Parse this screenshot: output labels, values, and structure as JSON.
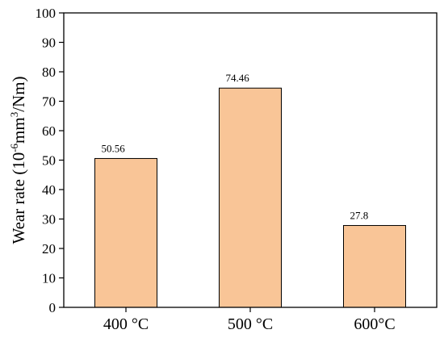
{
  "chart_data": {
    "type": "bar",
    "categories": [
      "400 °C",
      "500 °C",
      "600°C"
    ],
    "values": [
      50.56,
      74.46,
      27.8
    ],
    "data_labels": [
      "50.56",
      "74.46",
      "27.8"
    ],
    "ylabel": {
      "prefix": "Wear rate (10",
      "exp1": "-6",
      "middle": "mm",
      "exp2": "3",
      "suffix": "/Nm)"
    },
    "ylim": [
      0,
      100
    ],
    "yticks": [
      "0",
      "10",
      "20",
      "30",
      "40",
      "50",
      "60",
      "70",
      "80",
      "90",
      "100"
    ],
    "bar_color": "#f9c597",
    "bar_edge_color": "#000000",
    "grid": false
  }
}
